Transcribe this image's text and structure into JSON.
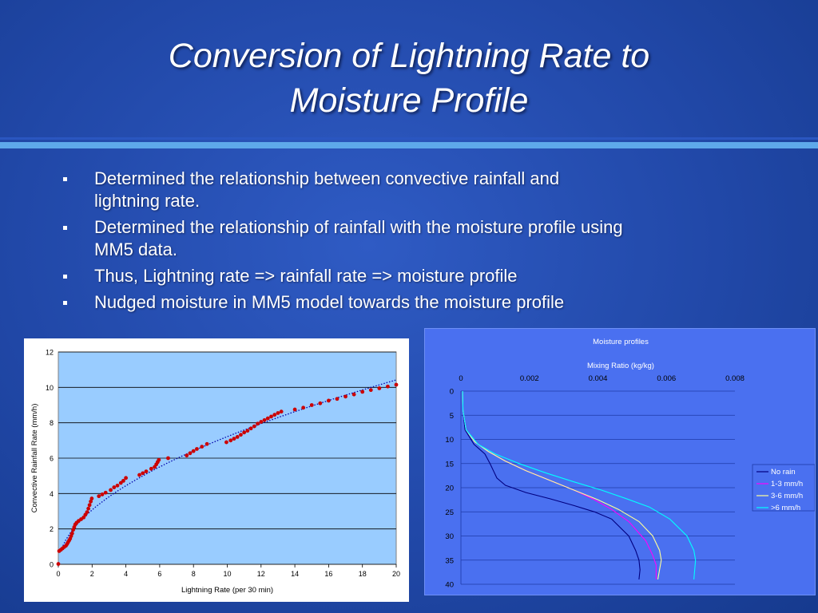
{
  "slide": {
    "title_line1": "Conversion of Lightning Rate to",
    "title_line2": "Moisture Profile",
    "bullets": [
      {
        "line1": "Determined the relationship between convective rainfall and",
        "line2": "lightning rate."
      },
      {
        "line1": "Determined the relationship of rainfall with the moisture profile using",
        "line2": "MM5 data."
      },
      {
        "line1": "Thus, Lightning rate => rainfall rate => moisture profile",
        "line2": ""
      },
      {
        "line1": "Nudged moisture in MM5 model towards the moisture profile",
        "line2": ""
      }
    ]
  },
  "chart_data": [
    {
      "type": "scatter",
      "title": "",
      "xlabel": "Lightning Rate (per 30 min)",
      "ylabel": "Convective Rainfall Rate (mm/h)",
      "xlim": [
        0,
        20
      ],
      "ylim": [
        0,
        12
      ],
      "xticks": [
        0,
        2,
        4,
        6,
        8,
        10,
        12,
        14,
        16,
        18,
        20
      ],
      "yticks": [
        0,
        2,
        4,
        6,
        8,
        10,
        12
      ],
      "grid": "horizontal",
      "plot_background": "#99ccff",
      "series": [
        {
          "color": "#cc0000",
          "points": [
            [
              0,
              0.02
            ],
            [
              0.05,
              0.75
            ],
            [
              0.15,
              0.82
            ],
            [
              0.25,
              0.9
            ],
            [
              0.35,
              0.98
            ],
            [
              0.45,
              1.05
            ],
            [
              0.52,
              1.15
            ],
            [
              0.58,
              1.25
            ],
            [
              0.64,
              1.35
            ],
            [
              0.7,
              1.45
            ],
            [
              0.76,
              1.6
            ],
            [
              0.82,
              1.75
            ],
            [
              0.88,
              1.95
            ],
            [
              0.94,
              2.1
            ],
            [
              1.0,
              2.25
            ],
            [
              1.08,
              2.35
            ],
            [
              1.2,
              2.45
            ],
            [
              1.35,
              2.55
            ],
            [
              1.5,
              2.65
            ],
            [
              1.6,
              2.8
            ],
            [
              1.7,
              2.95
            ],
            [
              1.78,
              3.15
            ],
            [
              1.85,
              3.35
            ],
            [
              1.92,
              3.55
            ],
            [
              1.98,
              3.72
            ],
            [
              2.4,
              3.85
            ],
            [
              2.6,
              3.95
            ],
            [
              2.8,
              4.05
            ],
            [
              3.1,
              4.2
            ],
            [
              3.3,
              4.35
            ],
            [
              3.5,
              4.45
            ],
            [
              3.7,
              4.6
            ],
            [
              3.85,
              4.72
            ],
            [
              4.0,
              4.88
            ],
            [
              4.8,
              5.05
            ],
            [
              5.0,
              5.15
            ],
            [
              5.2,
              5.25
            ],
            [
              5.5,
              5.4
            ],
            [
              5.7,
              5.5
            ],
            [
              5.8,
              5.65
            ],
            [
              5.88,
              5.78
            ],
            [
              5.95,
              5.9
            ],
            [
              6.5,
              6.0
            ],
            [
              7.6,
              6.15
            ],
            [
              7.8,
              6.28
            ],
            [
              8.0,
              6.4
            ],
            [
              8.2,
              6.52
            ],
            [
              8.5,
              6.65
            ],
            [
              8.8,
              6.8
            ],
            [
              9.95,
              6.9
            ],
            [
              10.2,
              7.0
            ],
            [
              10.4,
              7.1
            ],
            [
              10.6,
              7.2
            ],
            [
              10.8,
              7.32
            ],
            [
              11.0,
              7.45
            ],
            [
              11.2,
              7.55
            ],
            [
              11.4,
              7.68
            ],
            [
              11.6,
              7.8
            ],
            [
              11.8,
              7.95
            ],
            [
              12.0,
              8.05
            ],
            [
              12.2,
              8.15
            ],
            [
              12.4,
              8.25
            ],
            [
              12.6,
              8.35
            ],
            [
              12.8,
              8.45
            ],
            [
              13.0,
              8.55
            ],
            [
              13.2,
              8.63
            ],
            [
              14.0,
              8.75
            ],
            [
              14.5,
              8.85
            ],
            [
              15.0,
              9.0
            ],
            [
              15.5,
              9.1
            ],
            [
              16.0,
              9.25
            ],
            [
              16.5,
              9.35
            ],
            [
              17.0,
              9.48
            ],
            [
              17.5,
              9.6
            ],
            [
              18.0,
              9.75
            ],
            [
              18.5,
              9.85
            ],
            [
              19.0,
              9.95
            ],
            [
              19.5,
              10.05
            ],
            [
              20.0,
              10.15
            ]
          ]
        },
        {
          "name": "trend",
          "color": "#0000aa",
          "style": "dotted",
          "fit": "power",
          "coefficient": 2.13,
          "exponent": 0.53
        }
      ]
    },
    {
      "type": "line",
      "title": "Moisture profiles",
      "xlabel": "Mixing Ratio (kg/kg)",
      "xaxis_position": "top",
      "xlim": [
        0,
        0.008
      ],
      "xticks": [
        "0",
        "0.002",
        "0.004",
        "0.006",
        "0.008"
      ],
      "ylim": [
        0,
        40
      ],
      "yticks": [
        0,
        5,
        10,
        15,
        20,
        25,
        30,
        35,
        40
      ],
      "y_reversed": true,
      "grid": "horizontal",
      "legend_position": "right",
      "series": [
        {
          "name": "No rain",
          "color": "#000080",
          "x": [
            5e-05,
            6e-05,
            0.00012,
            0.00038,
            0.0007,
            0.00085,
            0.00095,
            0.00105,
            0.0013,
            0.0019,
            0.0026,
            0.0033,
            0.0039,
            0.0044,
            0.0049,
            0.0051,
            0.0052,
            0.00523,
            0.0052
          ],
          "y": [
            0,
            4,
            8,
            11,
            13,
            15,
            16.5,
            18,
            19.5,
            21,
            22.3,
            23.7,
            25,
            26.5,
            30,
            33,
            35,
            37,
            39
          ]
        },
        {
          "name": "1-3 mm/h",
          "color": "#ff00ff",
          "x": [
            5e-05,
            6e-05,
            0.00015,
            0.0004,
            0.0008,
            0.0013,
            0.0019,
            0.0026,
            0.0033,
            0.0039,
            0.0044,
            0.0049,
            0.0054,
            0.0056,
            0.0057,
            0.0057
          ],
          "y": [
            0,
            4,
            8,
            10.5,
            12.5,
            14.5,
            16.5,
            18.5,
            20.5,
            22.5,
            24.5,
            27,
            31,
            34,
            36,
            39
          ]
        },
        {
          "name": "3-6 mm/h",
          "color": "#ffff99",
          "x": [
            5e-05,
            6e-05,
            0.00015,
            0.0004,
            0.0008,
            0.0013,
            0.0019,
            0.0026,
            0.0033,
            0.004,
            0.0046,
            0.0052,
            0.0056,
            0.0058,
            0.00585,
            0.00575
          ],
          "y": [
            0,
            4,
            8,
            10.5,
            12.5,
            14.5,
            16.5,
            18.5,
            20.5,
            22.5,
            24.5,
            27,
            30,
            33,
            35,
            39
          ]
        },
        {
          "name": ">6 mm/h",
          "color": "#00ffff",
          "x": [
            5e-05,
            6e-05,
            0.00015,
            0.0005,
            0.001,
            0.0017,
            0.0025,
            0.0033,
            0.0041,
            0.0048,
            0.0055,
            0.0061,
            0.0066,
            0.0068,
            0.00685,
            0.0068
          ],
          "y": [
            0,
            4,
            8,
            11,
            13,
            15,
            17,
            18.8,
            20.5,
            22.2,
            24,
            26.5,
            30,
            33,
            35,
            39
          ]
        }
      ]
    }
  ]
}
